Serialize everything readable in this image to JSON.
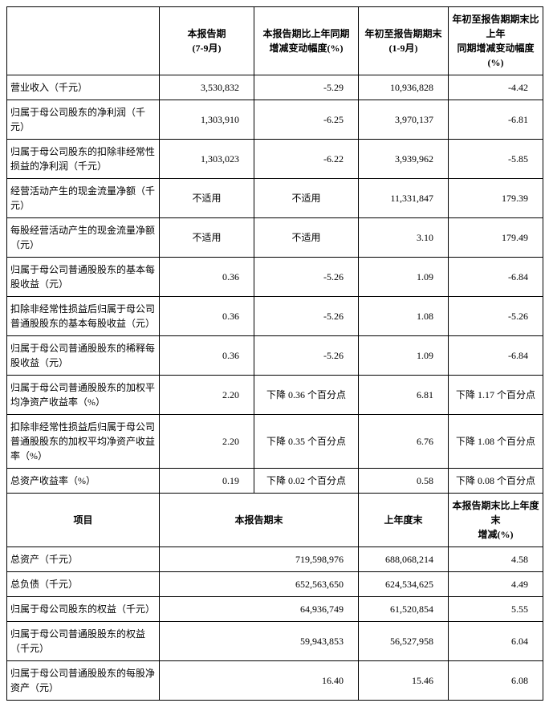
{
  "headers1": {
    "h2": "本报告期\n(7-9月)",
    "h3": "本报告期比上年同期\n增减变动幅度(%)",
    "h4": "年初至报告期期末\n(1-9月)",
    "h5": "年初至报告期期末比上年\n同期增减变动幅度(%)"
  },
  "rows1": [
    {
      "label": "营业收入（千元）",
      "c2": "3,530,832",
      "c3": "-5.29",
      "c4": "10,936,828",
      "c5": "-4.42"
    },
    {
      "label": "归属于母公司股东的净利润（千元）",
      "c2": "1,303,910",
      "c3": "-6.25",
      "c4": "3,970,137",
      "c5": "-6.81"
    },
    {
      "label": "归属于母公司股东的扣除非经常性\n损益的净利润（千元）",
      "c2": "1,303,023",
      "c3": "-6.22",
      "c4": "3,939,962",
      "c5": "-5.85"
    },
    {
      "label": "经营活动产生的现金流量净额（千\n元）",
      "c2": "不适用",
      "c3": "不适用",
      "c4": "11,331,847",
      "c5": "179.39",
      "c2ctr": true,
      "c3ctr": true
    },
    {
      "label": "每股经营活动产生的现金流量净额\n（元）",
      "c2": "不适用",
      "c3": "不适用",
      "c4": "3.10",
      "c5": "179.49",
      "c2ctr": true,
      "c3ctr": true
    },
    {
      "label": "归属于母公司普通股股东的基本每\n股收益（元）",
      "c2": "0.36",
      "c3": "-5.26",
      "c4": "1.09",
      "c5": "-6.84"
    },
    {
      "label": "扣除非经常性损益后归属于母公司\n普通股股东的基本每股收益（元）",
      "c2": "0.36",
      "c3": "-5.26",
      "c4": "1.08",
      "c5": "-5.26"
    },
    {
      "label": "归属于母公司普通股股东的稀释每\n股收益（元）",
      "c2": "0.36",
      "c3": "-5.26",
      "c4": "1.09",
      "c5": "-6.84"
    },
    {
      "label": "归属于母公司普通股股东的加权平\n均净资产收益率（%）",
      "c2": "2.20",
      "c3": "下降 0.36 个百分点",
      "c4": "6.81",
      "c5": "下降 1.17 个百分点",
      "c3ctr": true,
      "c5ctr": true
    },
    {
      "label": "扣除非经常性损益后归属于母公司\n普通股股东的加权平均净资产收益\n率（%）",
      "c2": "2.20",
      "c3": "下降 0.35 个百分点",
      "c4": "6.76",
      "c5": "下降 1.08 个百分点",
      "c3ctr": true,
      "c5ctr": true
    },
    {
      "label": "总资产收益率（%）",
      "c2": "0.19",
      "c3": "下降 0.02 个百分点",
      "c4": "0.58",
      "c5": "下降 0.08 个百分点",
      "c3ctr": true,
      "c5ctr": true
    }
  ],
  "headers2": {
    "h1": "项目",
    "h2": "本报告期末",
    "h3": "上年度末",
    "h4": "本报告期末比上年度末\n增减(%)"
  },
  "rows2": [
    {
      "label": "总资产（千元）",
      "c2": "719,598,976",
      "c3": "688,068,214",
      "c4": "4.58"
    },
    {
      "label": "总负债（千元）",
      "c2": "652,563,650",
      "c3": "624,534,625",
      "c4": "4.49"
    },
    {
      "label": "归属于母公司股东的权益（千元）",
      "c2": "64,936,749",
      "c3": "61,520,854",
      "c4": "5.55"
    },
    {
      "label": "归属于母公司普通股股东的权益\n（千元）",
      "c2": "59,943,853",
      "c3": "56,527,958",
      "c4": "6.04"
    },
    {
      "label": "归属于母公司普通股股东的每股净\n资产（元）",
      "c2": "16.40",
      "c3": "15.46",
      "c4": "6.08"
    }
  ]
}
